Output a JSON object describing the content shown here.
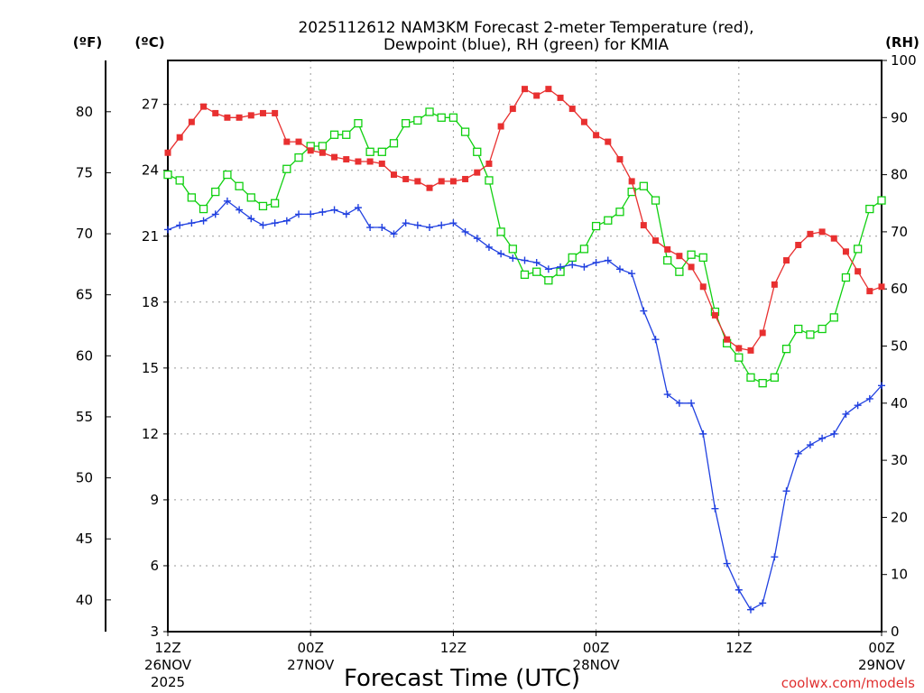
{
  "chart_data": {
    "type": "line",
    "title_line1": "2025112612 NAM3KM Forecast 2-meter Temperature (red),",
    "title_line2": "Dewpoint (blue), RH (green) for KMIA",
    "xlabel": "Forecast Time (UTC)",
    "credit": "coolwx.com/models",
    "units": {
      "fahrenheit": "(ºF)",
      "celsius": "(ºC)",
      "rh": "(RH)"
    },
    "colors": {
      "temperature": "#e83030",
      "dewpoint": "#2040e0",
      "rh": "#10d010",
      "grid": "#999999"
    },
    "x_range_hours": [
      0,
      60
    ],
    "x_ticks": [
      {
        "hour": 0,
        "label1": "12Z",
        "label2": "26NOV",
        "label3": "2025"
      },
      {
        "hour": 12,
        "label1": "00Z",
        "label2": "27NOV",
        "label3": ""
      },
      {
        "hour": 24,
        "label1": "12Z",
        "label2": "",
        "label3": ""
      },
      {
        "hour": 36,
        "label1": "00Z",
        "label2": "28NOV",
        "label3": ""
      },
      {
        "hour": 48,
        "label1": "12Z",
        "label2": "",
        "label3": ""
      },
      {
        "hour": 60,
        "label1": "00Z",
        "label2": "29NOV",
        "label3": ""
      }
    ],
    "celsius_axis": {
      "range": [
        3,
        29
      ],
      "ticks": [
        "3",
        "6",
        "9",
        "12",
        "15",
        "18",
        "21",
        "24",
        "27"
      ]
    },
    "fahrenheit_axis": {
      "ticks": [
        "40",
        "45",
        "50",
        "55",
        "60",
        "65",
        "70",
        "75",
        "80"
      ]
    },
    "rh_axis": {
      "range": [
        0,
        100
      ],
      "ticks": [
        "0",
        "10",
        "20",
        "30",
        "40",
        "50",
        "60",
        "70",
        "80",
        "90",
        "100"
      ]
    },
    "series": [
      {
        "name": "2-meter Temperature (°C)",
        "key": "temperature",
        "marker": "filled-square",
        "values": [
          24.8,
          25.5,
          26.2,
          26.9,
          26.6,
          26.4,
          26.4,
          26.5,
          26.6,
          26.6,
          25.3,
          25.3,
          24.9,
          24.8,
          24.6,
          24.5,
          24.4,
          24.4,
          24.3,
          23.8,
          23.6,
          23.5,
          23.2,
          23.5,
          23.5,
          23.6,
          23.9,
          24.3,
          26.0,
          26.8,
          27.7,
          27.4,
          27.7,
          27.3,
          26.8,
          26.2,
          25.6,
          25.3,
          24.5,
          23.5,
          21.5,
          20.8,
          20.4,
          20.1,
          19.6,
          18.7,
          17.4,
          16.3,
          15.9,
          15.8,
          16.6,
          18.8,
          19.9,
          20.6,
          21.1,
          21.2,
          20.9,
          20.3,
          19.4,
          18.5,
          18.7
        ]
      },
      {
        "name": "Dewpoint (°C)",
        "key": "dewpoint",
        "marker": "plus",
        "values": [
          21.3,
          21.5,
          21.6,
          21.7,
          22.0,
          22.6,
          22.2,
          21.8,
          21.5,
          21.6,
          21.7,
          22.0,
          22.0,
          22.1,
          22.2,
          22.0,
          22.3,
          21.4,
          21.4,
          21.1,
          21.6,
          21.5,
          21.4,
          21.5,
          21.6,
          21.2,
          20.9,
          20.5,
          20.2,
          20.0,
          19.9,
          19.8,
          19.5,
          19.6,
          19.7,
          19.6,
          19.8,
          19.9,
          19.5,
          19.3,
          17.6,
          16.3,
          13.8,
          13.4,
          13.4,
          12.0,
          8.6,
          6.1,
          4.9,
          4.0,
          4.3,
          6.4,
          9.4,
          11.1,
          11.5,
          11.8,
          12.0,
          12.9,
          13.3,
          13.6,
          14.2
        ]
      },
      {
        "name": "RH (%)",
        "key": "rh",
        "marker": "open-square",
        "values": [
          80,
          79,
          76,
          74,
          77,
          80,
          78,
          76,
          74.5,
          75,
          81,
          83,
          85,
          85,
          87,
          87,
          89,
          84,
          84,
          85.5,
          89,
          89.5,
          91,
          90,
          90,
          87.5,
          84,
          79,
          70,
          67,
          62.5,
          63,
          61.5,
          63,
          65.5,
          67,
          71,
          72,
          73.5,
          77,
          78,
          75.5,
          65,
          63,
          66,
          65.5,
          56,
          50.5,
          48,
          44.5,
          43.5,
          44.5,
          49.5,
          53,
          52,
          53,
          55,
          62,
          67,
          74,
          75.5
        ]
      }
    ]
  }
}
